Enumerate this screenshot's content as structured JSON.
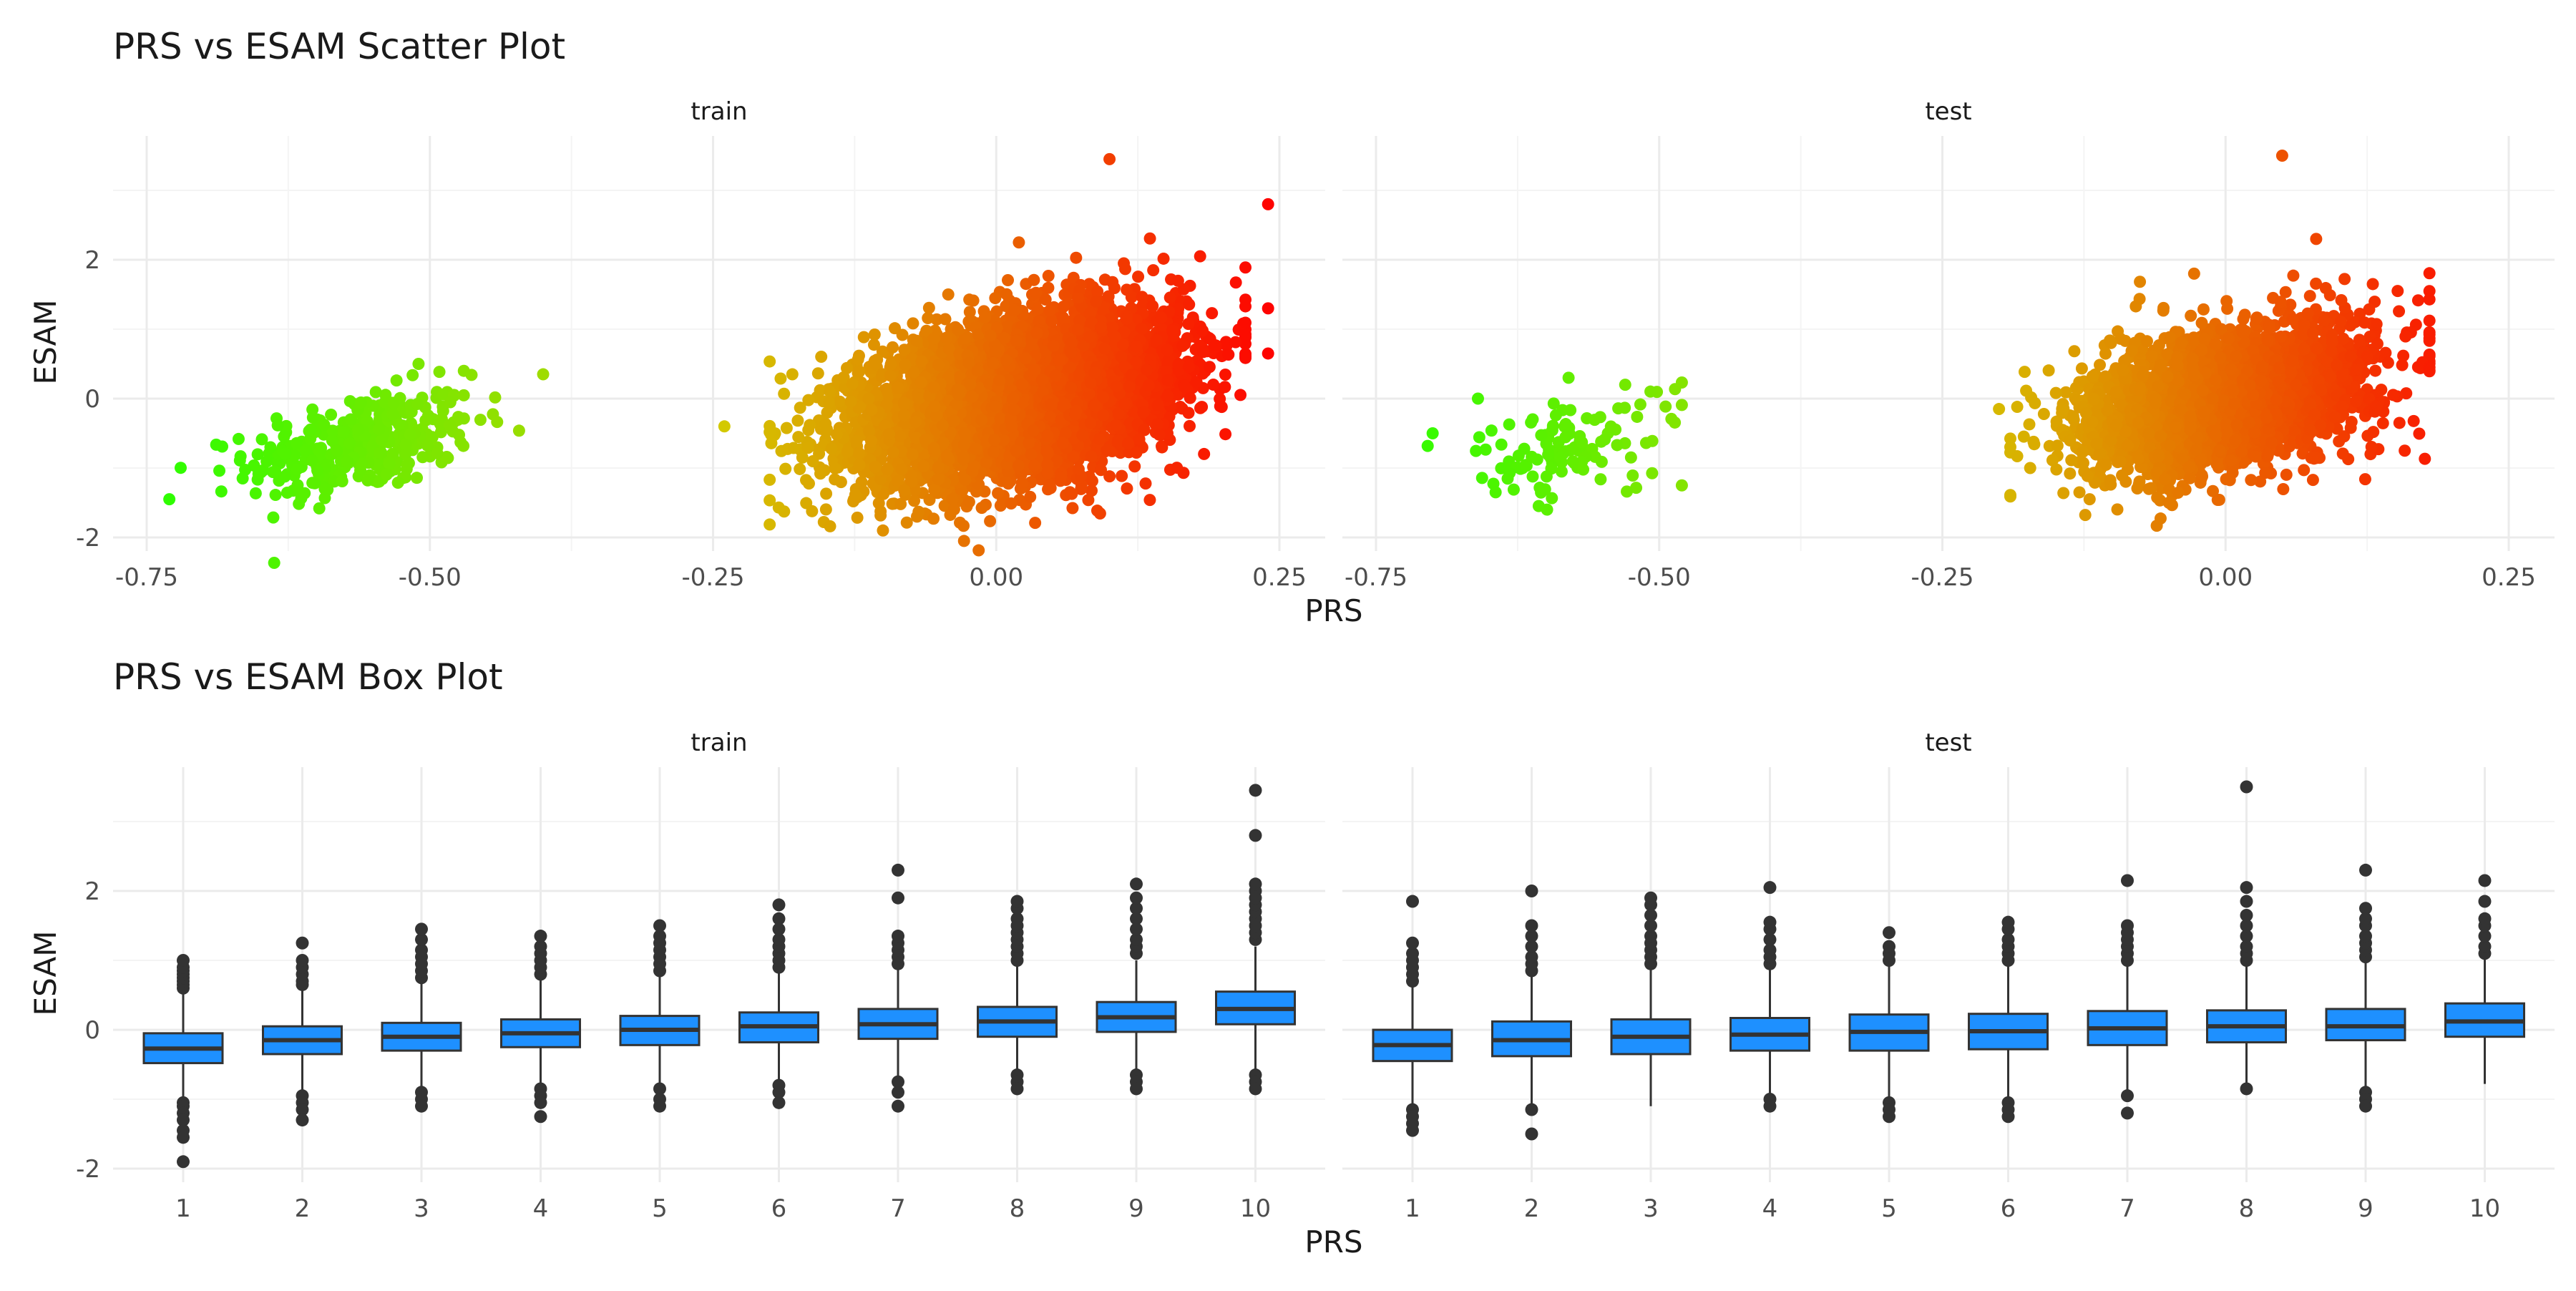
{
  "colors": {
    "grid_major": "#ebebeb",
    "grid_minor": "#f4f4f4",
    "text": "#1a1a1a",
    "tick_text": "#4d4d4d",
    "box_fill": "#1e90ff",
    "box_line": "#333333",
    "scatter_low": "#00ff00",
    "scatter_high": "#ff0000"
  },
  "chart_data": [
    {
      "type": "scatter",
      "title": "PRS vs ESAM Scatter Plot",
      "xlabel": "PRS",
      "ylabel": "ESAM",
      "grid": true,
      "color_scale": "green-to-red by PRS",
      "xlim": [
        -0.75,
        0.25
      ],
      "ylim": [
        -2,
        3.5
      ],
      "x_ticks": [
        "-0.75",
        "-0.50",
        "-0.25",
        "0.00",
        "0.25"
      ],
      "y_ticks": [
        "-2",
        "0",
        "2"
      ],
      "panels": [
        {
          "name": "train",
          "outlier_points": [
            [
              0.1,
              3.45
            ],
            [
              0.24,
              2.8
            ],
            [
              0.24,
              1.3
            ],
            [
              0.24,
              0.65
            ],
            [
              0.18,
              2.05
            ],
            [
              0.02,
              2.25
            ],
            [
              -0.1,
              -1.9
            ],
            [
              -0.4,
              0.35
            ],
            [
              -0.73,
              -1.45
            ],
            [
              -0.24,
              -0.4
            ],
            [
              -0.18,
              0.35
            ],
            [
              -0.51,
              0.5
            ],
            [
              -0.47,
              0.4
            ]
          ],
          "clusters": [
            {
              "x_center": -0.56,
              "x_sd": 0.05,
              "y_center": -0.65,
              "y_sd": 0.35,
              "n": 360,
              "x_range": [
                -0.72,
                -0.42
              ]
            },
            {
              "x_center": 0.02,
              "x_sd": 0.07,
              "y_center": 0.05,
              "y_sd": 0.55,
              "n": 5200,
              "x_range": [
                -0.2,
                0.22
              ]
            }
          ]
        },
        {
          "name": "test",
          "outlier_points": [
            [
              0.05,
              3.5
            ],
            [
              0.08,
              2.3
            ],
            [
              0.13,
              1.65
            ],
            [
              -0.12,
              -1.45
            ],
            [
              -0.05,
              -1.5
            ],
            [
              -0.7,
              -0.5
            ],
            [
              -0.66,
              0.0
            ],
            [
              -0.58,
              0.3
            ],
            [
              -0.53,
              0.2
            ],
            [
              -0.48,
              -1.25
            ],
            [
              -0.2,
              -0.15
            ],
            [
              0.18,
              0.45
            ]
          ],
          "clusters": [
            {
              "x_center": -0.58,
              "x_sd": 0.05,
              "y_center": -0.7,
              "y_sd": 0.35,
              "n": 110,
              "x_range": [
                -0.72,
                -0.48
              ]
            },
            {
              "x_center": 0.0,
              "x_sd": 0.065,
              "y_center": 0.0,
              "y_sd": 0.5,
              "n": 2600,
              "x_range": [
                -0.19,
                0.18
              ]
            }
          ]
        }
      ]
    },
    {
      "type": "box",
      "title": "PRS vs ESAM Box Plot",
      "xlabel": "PRS",
      "ylabel": "ESAM",
      "grid": true,
      "categories": [
        "1",
        "2",
        "3",
        "4",
        "5",
        "6",
        "7",
        "8",
        "9",
        "10"
      ],
      "ylim": [
        -2,
        3.5
      ],
      "y_ticks": [
        "-2",
        "0",
        "2"
      ],
      "panels": [
        {
          "name": "train",
          "boxes": [
            {
              "q1": -0.48,
              "median": -0.27,
              "q3": -0.05,
              "whisker_low": -1.0,
              "whisker_high": 0.55,
              "outliers": [
                0.6,
                0.65,
                0.7,
                0.75,
                0.8,
                0.85,
                0.9,
                1.0,
                -1.05,
                -1.1,
                -1.2,
                -1.3,
                -1.45,
                -1.55,
                -1.9
              ]
            },
            {
              "q1": -0.35,
              "median": -0.15,
              "q3": 0.05,
              "whisker_low": -0.9,
              "whisker_high": 0.6,
              "outliers": [
                0.65,
                0.7,
                0.8,
                0.9,
                1.0,
                1.25,
                -0.95,
                -1.05,
                -1.15,
                -1.3
              ]
            },
            {
              "q1": -0.3,
              "median": -0.1,
              "q3": 0.1,
              "whisker_low": -0.85,
              "whisker_high": 0.7,
              "outliers": [
                0.75,
                0.85,
                0.95,
                1.05,
                1.15,
                1.3,
                1.45,
                -0.9,
                -1.0,
                -1.1
              ]
            },
            {
              "q1": -0.25,
              "median": -0.05,
              "q3": 0.15,
              "whisker_low": -0.8,
              "whisker_high": 0.75,
              "outliers": [
                0.8,
                0.9,
                1.0,
                1.1,
                1.2,
                1.35,
                -0.85,
                -0.95,
                -1.05,
                -1.25
              ]
            },
            {
              "q1": -0.22,
              "median": 0.0,
              "q3": 0.2,
              "whisker_low": -0.8,
              "whisker_high": 0.8,
              "outliers": [
                0.85,
                0.95,
                1.05,
                1.15,
                1.25,
                1.35,
                1.5,
                -0.85,
                -1.0,
                -1.1
              ]
            },
            {
              "q1": -0.18,
              "median": 0.05,
              "q3": 0.25,
              "whisker_low": -0.75,
              "whisker_high": 0.85,
              "outliers": [
                0.9,
                1.0,
                1.1,
                1.2,
                1.3,
                1.45,
                1.6,
                1.8,
                -0.8,
                -0.9,
                -1.05
              ]
            },
            {
              "q1": -0.13,
              "median": 0.08,
              "q3": 0.3,
              "whisker_low": -0.7,
              "whisker_high": 0.9,
              "outliers": [
                0.95,
                1.05,
                1.15,
                1.25,
                1.35,
                1.9,
                2.3,
                -0.75,
                -0.9,
                -1.1
              ]
            },
            {
              "q1": -0.1,
              "median": 0.12,
              "q3": 0.33,
              "whisker_low": -0.6,
              "whisker_high": 0.95,
              "outliers": [
                1.0,
                1.1,
                1.2,
                1.3,
                1.4,
                1.5,
                1.6,
                1.75,
                1.85,
                -0.65,
                -0.75,
                -0.85
              ]
            },
            {
              "q1": -0.03,
              "median": 0.18,
              "q3": 0.4,
              "whisker_low": -0.6,
              "whisker_high": 1.0,
              "outliers": [
                1.1,
                1.2,
                1.3,
                1.45,
                1.6,
                1.75,
                1.9,
                2.1,
                -0.65,
                -0.75,
                -0.85
              ]
            },
            {
              "q1": 0.08,
              "median": 0.3,
              "q3": 0.55,
              "whisker_low": -0.6,
              "whisker_high": 1.2,
              "outliers": [
                1.3,
                1.4,
                1.5,
                1.6,
                1.7,
                1.8,
                1.9,
                2.0,
                2.1,
                2.8,
                3.45,
                -0.65,
                -0.75,
                -0.85
              ]
            }
          ]
        },
        {
          "name": "test",
          "boxes": [
            {
              "q1": -0.45,
              "median": -0.22,
              "q3": 0.0,
              "whisker_low": -1.1,
              "whisker_high": 0.65,
              "outliers": [
                0.7,
                0.8,
                0.9,
                1.0,
                1.1,
                1.25,
                1.85,
                -1.15,
                -1.25,
                -1.35,
                -1.45
              ]
            },
            {
              "q1": -0.38,
              "median": -0.15,
              "q3": 0.12,
              "whisker_low": -1.1,
              "whisker_high": 0.8,
              "outliers": [
                0.85,
                0.95,
                1.05,
                1.2,
                1.35,
                1.5,
                2.0,
                -1.15,
                -1.5
              ]
            },
            {
              "q1": -0.35,
              "median": -0.1,
              "q3": 0.15,
              "whisker_low": -1.1,
              "whisker_high": 0.9,
              "outliers": [
                0.95,
                1.05,
                1.15,
                1.25,
                1.35,
                1.5,
                1.65,
                1.8,
                1.9
              ]
            },
            {
              "q1": -0.3,
              "median": -0.07,
              "q3": 0.17,
              "whisker_low": -0.95,
              "whisker_high": 0.9,
              "outliers": [
                0.95,
                1.05,
                1.15,
                1.3,
                1.45,
                1.55,
                2.05,
                -1.0,
                -1.1
              ]
            },
            {
              "q1": -0.3,
              "median": -0.03,
              "q3": 0.22,
              "whisker_low": -1.0,
              "whisker_high": 0.95,
              "outliers": [
                1.0,
                1.1,
                1.2,
                1.4,
                -1.05,
                -1.15,
                -1.25
              ]
            },
            {
              "q1": -0.28,
              "median": -0.02,
              "q3": 0.23,
              "whisker_low": -1.0,
              "whisker_high": 0.95,
              "outliers": [
                1.0,
                1.1,
                1.2,
                1.3,
                1.45,
                1.55,
                -1.05,
                -1.15,
                -1.25
              ]
            },
            {
              "q1": -0.22,
              "median": 0.02,
              "q3": 0.27,
              "whisker_low": -0.9,
              "whisker_high": 0.95,
              "outliers": [
                1.0,
                1.1,
                1.2,
                1.3,
                1.4,
                1.5,
                2.15,
                -0.95,
                -1.2
              ]
            },
            {
              "q1": -0.18,
              "median": 0.05,
              "q3": 0.28,
              "whisker_low": -0.8,
              "whisker_high": 0.95,
              "outliers": [
                1.0,
                1.1,
                1.2,
                1.35,
                1.5,
                1.65,
                1.85,
                2.05,
                3.5,
                -0.85
              ]
            },
            {
              "q1": -0.15,
              "median": 0.05,
              "q3": 0.3,
              "whisker_low": -0.85,
              "whisker_high": 1.0,
              "outliers": [
                1.05,
                1.15,
                1.25,
                1.35,
                1.5,
                1.6,
                1.75,
                2.3,
                -0.9,
                -1.0,
                -1.1
              ]
            },
            {
              "q1": -0.1,
              "median": 0.12,
              "q3": 0.38,
              "whisker_low": -0.78,
              "whisker_high": 1.05,
              "outliers": [
                1.1,
                1.2,
                1.35,
                1.5,
                1.6,
                1.85,
                2.15
              ]
            }
          ]
        }
      ]
    }
  ]
}
